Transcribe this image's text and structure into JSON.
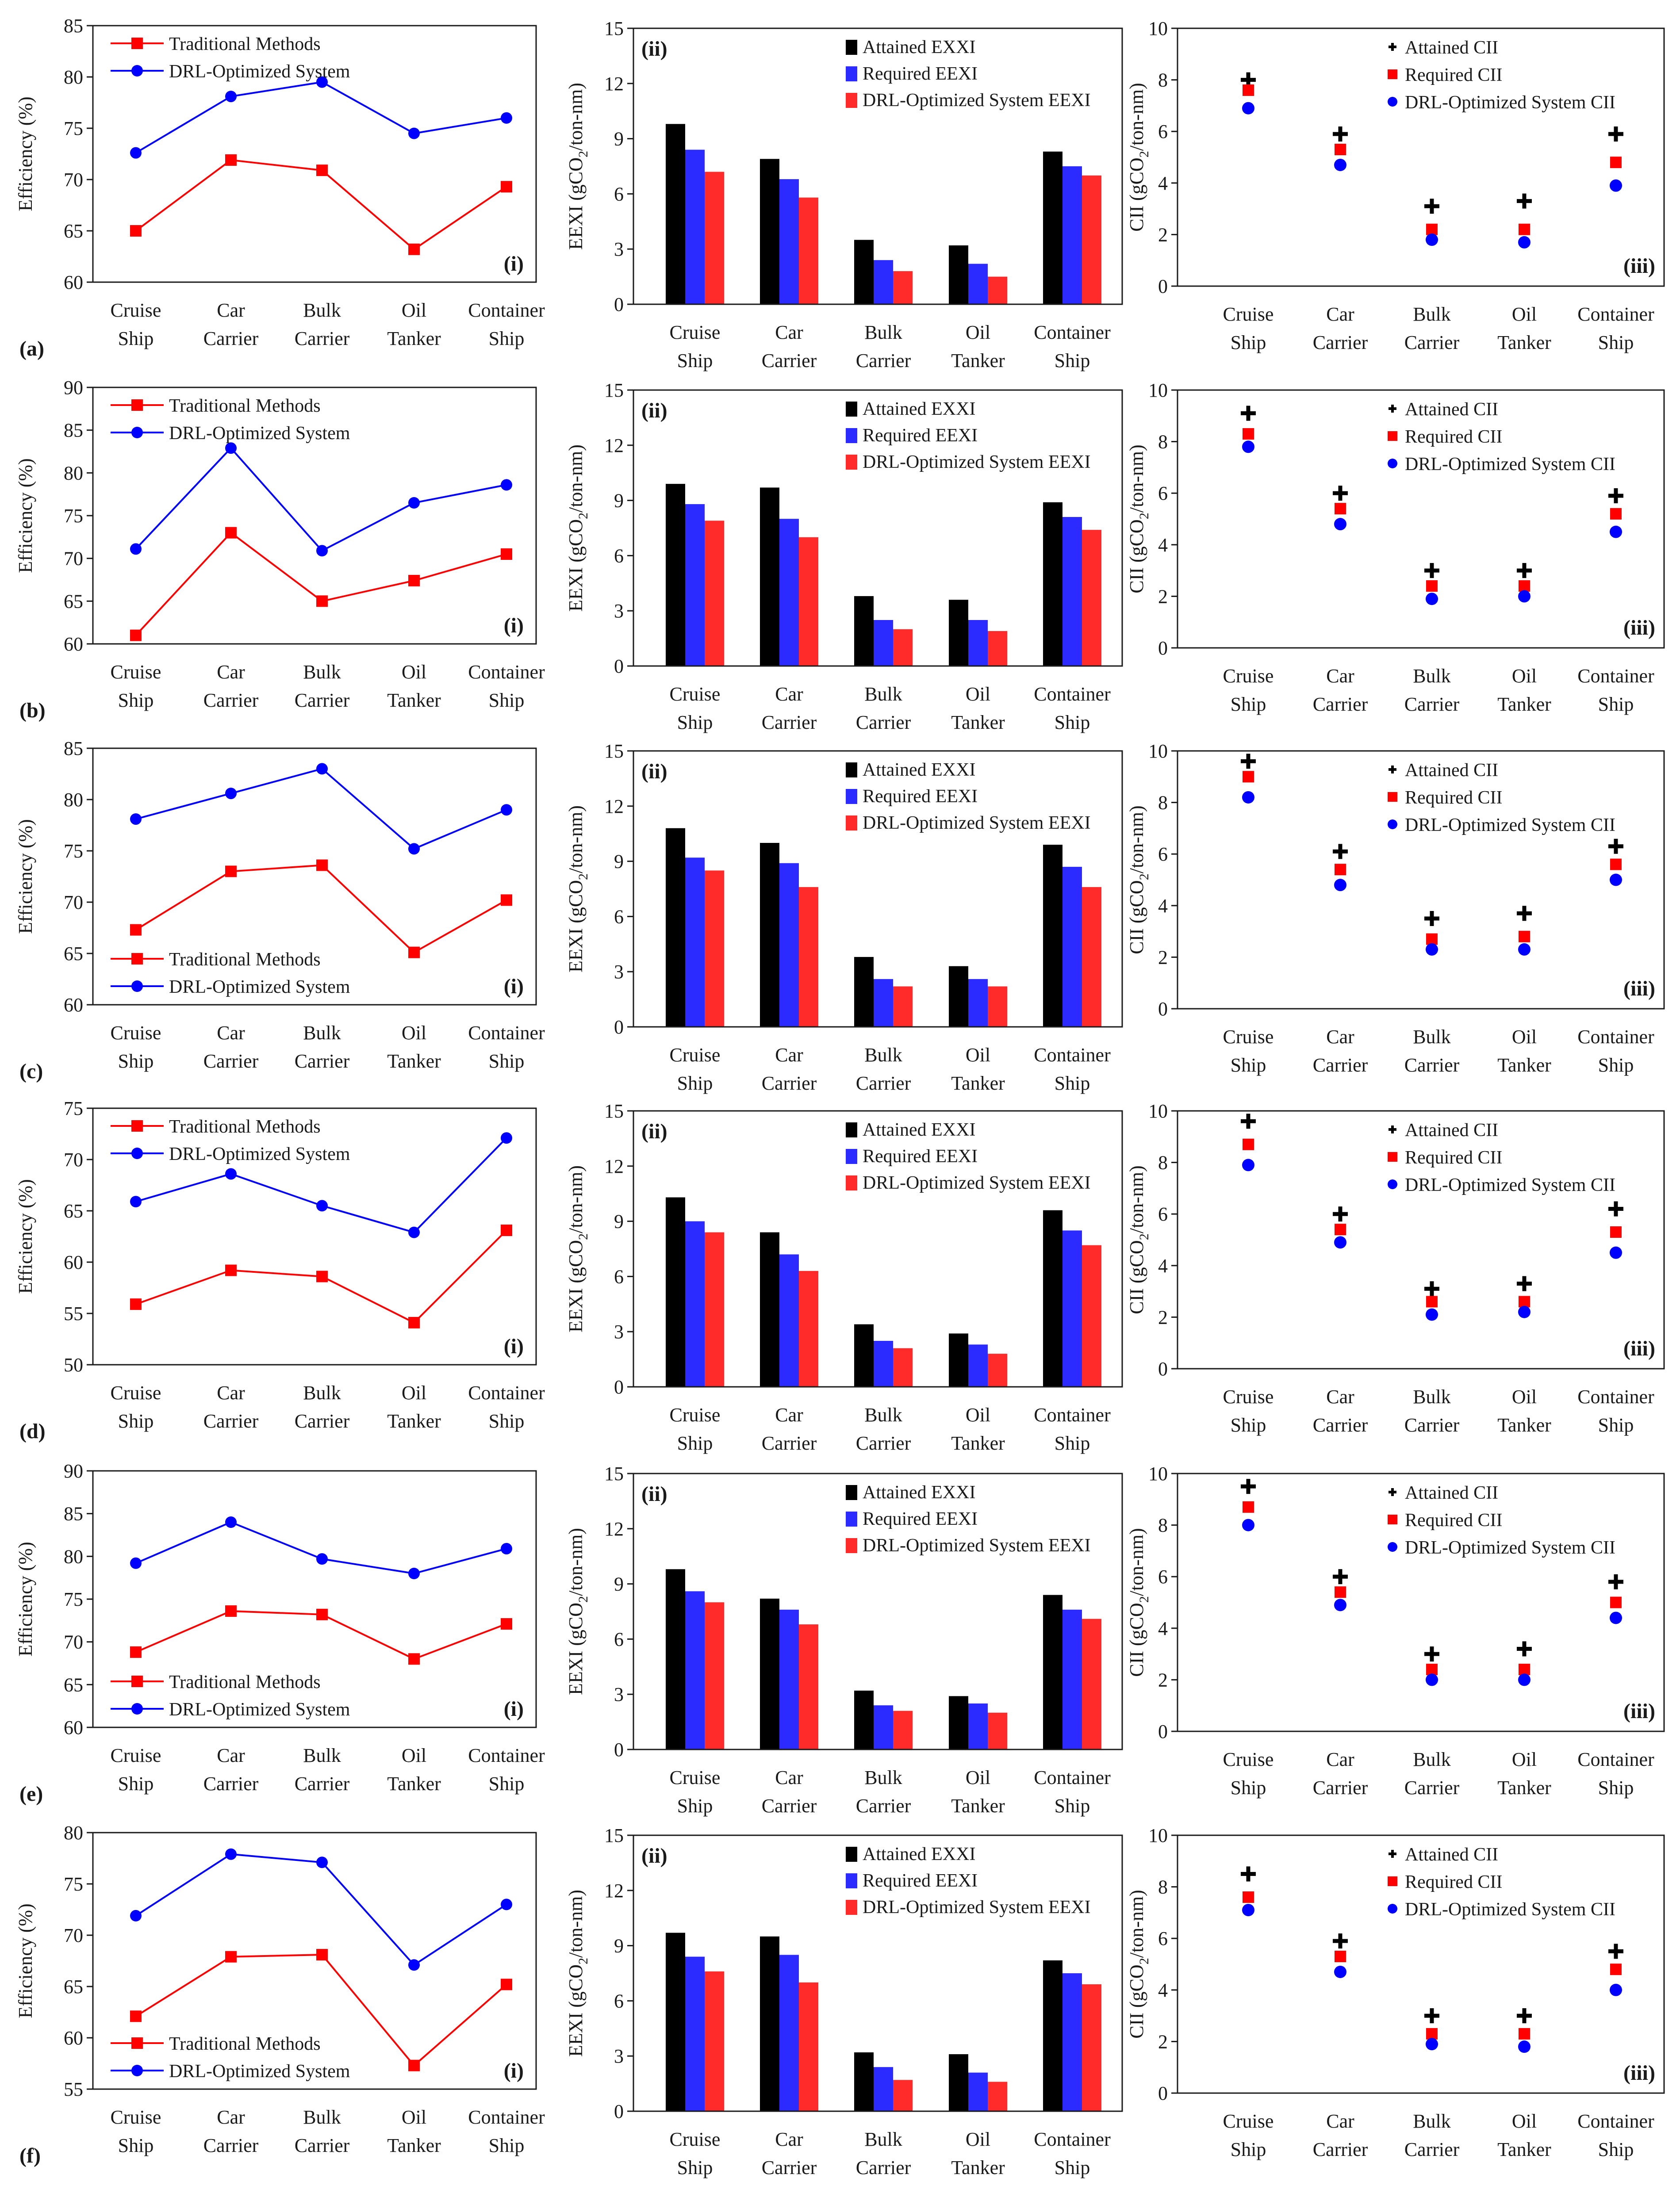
{
  "figure": {
    "categories": [
      [
        "Cruise",
        "Ship"
      ],
      [
        "Car",
        "Carrier"
      ],
      [
        "Bulk",
        "Carrier"
      ],
      [
        "Oil",
        "Tanker"
      ],
      [
        "Container",
        "Ship"
      ]
    ],
    "colors": {
      "traditional": "#ff0000",
      "drl": "#0000ff",
      "attained": "#000000",
      "required": "#2b2bff",
      "drl_eexi": "#ff2b2b",
      "required_cii": "#ff0000",
      "drl_cii": "#0000ff"
    },
    "eff_ylabel": "Efficiency (%)",
    "eexi_ylabel": "EEXI (gCO₂/ton-nm)",
    "cii_ylabel": "CII (gCO₂/ton-nm)",
    "eff_legend": [
      "Traditional Methods",
      "DRL-Optimized System"
    ],
    "eexi_legend": [
      "Attained EXXI",
      "Required EEXI",
      "DRL-Optimized System EEXI"
    ],
    "cii_legend": [
      "Attained CII",
      "Required CII",
      "DRL-Optimized System CII"
    ],
    "tag_i": "(i)",
    "tag_ii": "(ii)",
    "tag_iii": "(iii)"
  },
  "chart_data": [
    {
      "row": "(a)",
      "efficiency": {
        "type": "line",
        "title": "(i)",
        "ylabel": "Efficiency (%)",
        "ylim": [
          60,
          85
        ],
        "ticks": [
          60,
          65,
          70,
          75,
          80,
          85
        ],
        "legend_position": "top-left",
        "series": [
          {
            "name": "Traditional Methods",
            "values": [
              65.0,
              71.9,
              70.9,
              63.2,
              69.3
            ]
          },
          {
            "name": "DRL-Optimized System",
            "values": [
              72.6,
              78.1,
              79.5,
              74.5,
              76.0
            ]
          }
        ]
      },
      "eexi": {
        "type": "bar",
        "title": "(ii)",
        "ylabel": "EEXI (gCO2/ton-nm)",
        "ylim": [
          0,
          15
        ],
        "ticks": [
          0,
          3,
          6,
          9,
          12,
          15
        ],
        "series": [
          {
            "name": "Attained EXXI",
            "values": [
              9.8,
              7.9,
              3.5,
              3.2,
              8.3
            ]
          },
          {
            "name": "Required EEXI",
            "values": [
              8.4,
              6.8,
              2.4,
              2.2,
              7.5
            ]
          },
          {
            "name": "DRL-Optimized System EEXI",
            "values": [
              7.2,
              5.8,
              1.8,
              1.5,
              7.0
            ]
          }
        ]
      },
      "cii": {
        "type": "scatter",
        "title": "(iii)",
        "ylabel": "CII (gCO2/ton-nm)",
        "ylim": [
          0,
          10
        ],
        "ticks": [
          0,
          2,
          4,
          6,
          8,
          10
        ],
        "series": [
          {
            "name": "Attained CII",
            "values": [
              8.0,
              5.9,
              3.1,
              3.3,
              5.9
            ]
          },
          {
            "name": "Required CII",
            "values": [
              7.6,
              5.3,
              2.2,
              2.2,
              4.8
            ]
          },
          {
            "name": "DRL-Optimized System CII",
            "values": [
              6.9,
              4.7,
              1.8,
              1.7,
              3.9
            ]
          }
        ]
      }
    },
    {
      "row": "(b)",
      "efficiency": {
        "type": "line",
        "title": "(i)",
        "ylabel": "Efficiency (%)",
        "ylim": [
          60,
          90
        ],
        "ticks": [
          60,
          65,
          70,
          75,
          80,
          85,
          90
        ],
        "legend_position": "top-left",
        "series": [
          {
            "name": "Traditional Methods",
            "values": [
              61.0,
              73.0,
              65.0,
              67.4,
              70.5
            ]
          },
          {
            "name": "DRL-Optimized System",
            "values": [
              71.1,
              82.9,
              70.9,
              76.5,
              78.6
            ]
          }
        ]
      },
      "eexi": {
        "type": "bar",
        "title": "(ii)",
        "ylabel": "EEXI (gCO2/ton-nm)",
        "ylim": [
          0,
          15
        ],
        "ticks": [
          0,
          3,
          6,
          9,
          12,
          15
        ],
        "series": [
          {
            "name": "Attained EXXI",
            "values": [
              9.9,
              9.7,
              3.8,
              3.6,
              8.9
            ]
          },
          {
            "name": "Required EEXI",
            "values": [
              8.8,
              8.0,
              2.5,
              2.5,
              8.1
            ]
          },
          {
            "name": "DRL-Optimized System EEXI",
            "values": [
              7.9,
              7.0,
              2.0,
              1.9,
              7.4
            ]
          }
        ]
      },
      "cii": {
        "type": "scatter",
        "title": "(iii)",
        "ylabel": "CII (gCO2/ton-nm)",
        "ylim": [
          0,
          10
        ],
        "ticks": [
          0,
          2,
          4,
          6,
          8,
          10
        ],
        "series": [
          {
            "name": "Attained CII",
            "values": [
              9.1,
              6.0,
              3.0,
              3.0,
              5.9
            ]
          },
          {
            "name": "Required CII",
            "values": [
              8.3,
              5.4,
              2.4,
              2.4,
              5.2
            ]
          },
          {
            "name": "DRL-Optimized System CII",
            "values": [
              7.8,
              4.8,
              1.9,
              2.0,
              4.5
            ]
          }
        ]
      }
    },
    {
      "row": "(c)",
      "efficiency": {
        "type": "line",
        "title": "(i)",
        "ylabel": "Efficiency (%)",
        "ylim": [
          60,
          85
        ],
        "ticks": [
          60,
          65,
          70,
          75,
          80,
          85
        ],
        "legend_position": "bottom-left",
        "series": [
          {
            "name": "Traditional Methods",
            "values": [
              67.3,
              73.0,
              73.6,
              65.1,
              70.2
            ]
          },
          {
            "name": "DRL-Optimized System",
            "values": [
              78.1,
              80.6,
              83.0,
              75.2,
              79.0
            ]
          }
        ]
      },
      "eexi": {
        "type": "bar",
        "title": "(ii)",
        "ylabel": "EEXI (gCO2/ton-nm)",
        "ylim": [
          0,
          15
        ],
        "ticks": [
          0,
          3,
          6,
          9,
          12,
          15
        ],
        "series": [
          {
            "name": "Attained EXXI",
            "values": [
              10.8,
              10.0,
              3.8,
              3.3,
              9.9
            ]
          },
          {
            "name": "Required EEXI",
            "values": [
              9.2,
              8.9,
              2.6,
              2.6,
              8.7
            ]
          },
          {
            "name": "DRL-Optimized System EEXI",
            "values": [
              8.5,
              7.6,
              2.2,
              2.2,
              7.6
            ]
          }
        ]
      },
      "cii": {
        "type": "scatter",
        "title": "(iii)",
        "ylabel": "CII (gCO2/ton-nm)",
        "ylim": [
          0,
          10
        ],
        "ticks": [
          0,
          2,
          4,
          6,
          8,
          10
        ],
        "series": [
          {
            "name": "Attained CII",
            "values": [
              9.6,
              6.1,
              3.5,
              3.7,
              6.3
            ]
          },
          {
            "name": "Required CII",
            "values": [
              9.0,
              5.4,
              2.7,
              2.8,
              5.6
            ]
          },
          {
            "name": "DRL-Optimized System CII",
            "values": [
              8.2,
              4.8,
              2.3,
              2.3,
              5.0
            ]
          }
        ]
      }
    },
    {
      "row": "(d)",
      "efficiency": {
        "type": "line",
        "title": "(i)",
        "ylabel": "Efficiency (%)",
        "ylim": [
          50,
          75
        ],
        "ticks": [
          50,
          55,
          60,
          65,
          70,
          75
        ],
        "legend_position": "top-left",
        "series": [
          {
            "name": "Traditional Methods",
            "values": [
              55.9,
              59.2,
              58.6,
              54.1,
              63.1
            ]
          },
          {
            "name": "DRL-Optimized System",
            "values": [
              65.9,
              68.6,
              65.5,
              62.9,
              72.1
            ]
          }
        ]
      },
      "eexi": {
        "type": "bar",
        "title": "(ii)",
        "ylabel": "EEXI (gCO2/ton-nm)",
        "ylim": [
          0,
          15
        ],
        "ticks": [
          0,
          3,
          6,
          9,
          12,
          15
        ],
        "series": [
          {
            "name": "Attained EXXI",
            "values": [
              10.3,
              8.4,
              3.4,
              2.9,
              9.6
            ]
          },
          {
            "name": "Required EEXI",
            "values": [
              9.0,
              7.2,
              2.5,
              2.3,
              8.5
            ]
          },
          {
            "name": "DRL-Optimized System EEXI",
            "values": [
              8.4,
              6.3,
              2.1,
              1.8,
              7.7
            ]
          }
        ]
      },
      "cii": {
        "type": "scatter",
        "title": "(iii)",
        "ylabel": "CII (gCO2/ton-nm)",
        "ylim": [
          0,
          10
        ],
        "ticks": [
          0,
          2,
          4,
          6,
          8,
          10
        ],
        "series": [
          {
            "name": "Attained CII",
            "values": [
              9.6,
              6.0,
              3.1,
              3.3,
              6.2
            ]
          },
          {
            "name": "Required CII",
            "values": [
              8.7,
              5.4,
              2.6,
              2.6,
              5.3
            ]
          },
          {
            "name": "DRL-Optimized System CII",
            "values": [
              7.9,
              4.9,
              2.1,
              2.2,
              4.5
            ]
          }
        ]
      }
    },
    {
      "row": "(e)",
      "efficiency": {
        "type": "line",
        "title": "(i)",
        "ylabel": "Efficiency (%)",
        "ylim": [
          60,
          90
        ],
        "ticks": [
          60,
          65,
          70,
          75,
          80,
          85,
          90
        ],
        "legend_position": "bottom-left",
        "series": [
          {
            "name": "Traditional Methods",
            "values": [
              68.8,
              73.6,
              73.2,
              68.0,
              72.1
            ]
          },
          {
            "name": "DRL-Optimized System",
            "values": [
              79.2,
              84.0,
              79.7,
              78.0,
              80.9
            ]
          }
        ]
      },
      "eexi": {
        "type": "bar",
        "title": "(ii)",
        "ylabel": "EEXI (gCO2/ton-nm)",
        "ylim": [
          0,
          15
        ],
        "ticks": [
          0,
          3,
          6,
          9,
          12,
          15
        ],
        "series": [
          {
            "name": "Attained EXXI",
            "values": [
              9.8,
              8.2,
              3.2,
              2.9,
              8.4
            ]
          },
          {
            "name": "Required EEXI",
            "values": [
              8.6,
              7.6,
              2.4,
              2.5,
              7.6
            ]
          },
          {
            "name": "DRL-Optimized System EEXI",
            "values": [
              8.0,
              6.8,
              2.1,
              2.0,
              7.1
            ]
          }
        ]
      },
      "cii": {
        "type": "scatter",
        "title": "(iii)",
        "ylabel": "CII (gCO2/ton-nm)",
        "ylim": [
          0,
          10
        ],
        "ticks": [
          0,
          2,
          4,
          6,
          8,
          10
        ],
        "series": [
          {
            "name": "Attained CII",
            "values": [
              9.5,
              6.0,
              3.0,
              3.2,
              5.8
            ]
          },
          {
            "name": "Required CII",
            "values": [
              8.7,
              5.4,
              2.4,
              2.4,
              5.0
            ]
          },
          {
            "name": "DRL-Optimized System CII",
            "values": [
              8.0,
              4.9,
              2.0,
              2.0,
              4.4
            ]
          }
        ]
      }
    },
    {
      "row": "(f)",
      "efficiency": {
        "type": "line",
        "title": "(i)",
        "ylabel": "Efficiency (%)",
        "ylim": [
          55,
          80
        ],
        "ticks": [
          55,
          60,
          65,
          70,
          75,
          80
        ],
        "legend_position": "bottom-left",
        "series": [
          {
            "name": "Traditional Methods",
            "values": [
              62.1,
              67.9,
              68.1,
              57.3,
              65.2
            ]
          },
          {
            "name": "DRL-Optimized System",
            "values": [
              71.9,
              77.9,
              77.1,
              67.1,
              73.0
            ]
          }
        ]
      },
      "eexi": {
        "type": "bar",
        "title": "(ii)",
        "ylabel": "EEXI (gCO2/ton-nm)",
        "ylim": [
          0,
          15
        ],
        "ticks": [
          0,
          3,
          6,
          9,
          12,
          15
        ],
        "series": [
          {
            "name": "Attained EXXI",
            "values": [
              9.7,
              9.5,
              3.2,
              3.1,
              8.2
            ]
          },
          {
            "name": "Required EEXI",
            "values": [
              8.4,
              8.5,
              2.4,
              2.1,
              7.5
            ]
          },
          {
            "name": "DRL-Optimized System EEXI",
            "values": [
              7.6,
              7.0,
              1.7,
              1.6,
              6.9
            ]
          }
        ]
      },
      "cii": {
        "type": "scatter",
        "title": "(iii)",
        "ylabel": "CII (gCO2/ton-nm)",
        "ylim": [
          0,
          10
        ],
        "ticks": [
          0,
          2,
          4,
          6,
          8,
          10
        ],
        "series": [
          {
            "name": "Attained CII",
            "values": [
              8.5,
              5.9,
              3.0,
              3.0,
              5.5
            ]
          },
          {
            "name": "Required CII",
            "values": [
              7.6,
              5.3,
              2.3,
              2.3,
              4.8
            ]
          },
          {
            "name": "DRL-Optimized System CII",
            "values": [
              7.1,
              4.7,
              1.9,
              1.8,
              4.0
            ]
          }
        ]
      }
    }
  ]
}
